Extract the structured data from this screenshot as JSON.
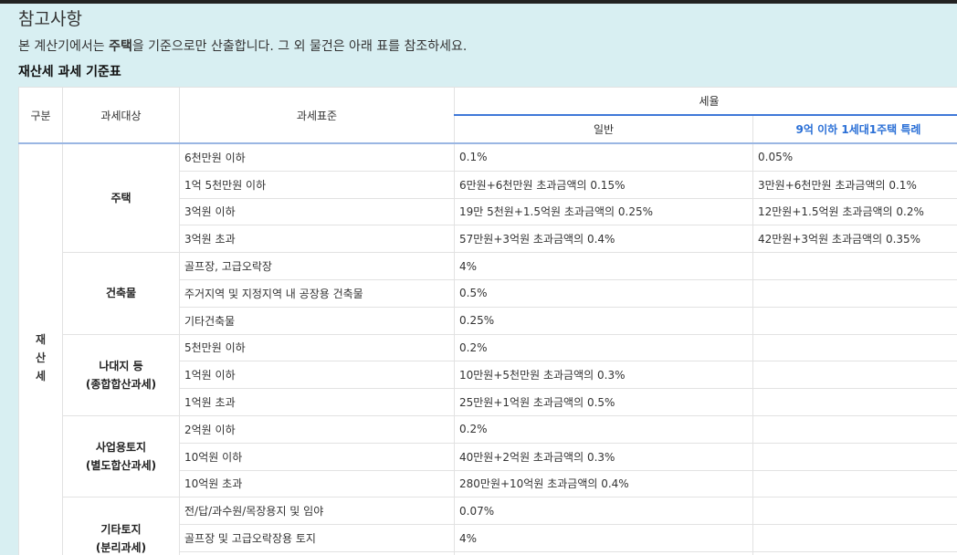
{
  "heading": "참고사항",
  "description": {
    "before": "본 계산기에서는 ",
    "bold": "주택",
    "after": "을 기준으로만 산출합니다. 그 외 물건은 아래 표를 참조하세요."
  },
  "table_title": "재산세 과세 기준표",
  "headers": {
    "gubun": "구분",
    "target": "과세대상",
    "standard": "과세표준",
    "rate": "세율",
    "general": "일반",
    "special": "9억 이하 1세대1주택 특례"
  },
  "tax_name_chars": [
    "재",
    "산",
    "세"
  ],
  "categories": [
    {
      "name": "주택",
      "sub": "",
      "rows": [
        {
          "standard": "6천만원 이하",
          "general": "0.1%",
          "special": "0.05%"
        },
        {
          "standard": "1억 5천만원 이하",
          "general": "6만원+6천만원 초과금액의 0.15%",
          "special": "3만원+6천만원 초과금액의 0.1%"
        },
        {
          "standard": "3억원 이하",
          "general": "19만 5천원+1.5억원 초과금액의 0.25%",
          "special": "12만원+1.5억원 초과금액의 0.2%"
        },
        {
          "standard": "3억원 초과",
          "general": "57만원+3억원 초과금액의 0.4%",
          "special": "42만원+3억원 초과금액의 0.35%"
        }
      ]
    },
    {
      "name": "건축물",
      "sub": "",
      "rows": [
        {
          "standard": "골프장, 고급오락장",
          "general": "4%",
          "special": ""
        },
        {
          "standard": "주거지역 및 지정지역 내 공장용 건축물",
          "general": "0.5%",
          "special": ""
        },
        {
          "standard": "기타건축물",
          "general": "0.25%",
          "special": ""
        }
      ]
    },
    {
      "name": "나대지 등",
      "sub": "(종합합산과세)",
      "rows": [
        {
          "standard": "5천만원 이하",
          "general": "0.2%",
          "special": ""
        },
        {
          "standard": "1억원 이하",
          "general": "10만원+5천만원 초과금액의 0.3%",
          "special": ""
        },
        {
          "standard": "1억원 초과",
          "general": "25만원+1억원 초과금액의 0.5%",
          "special": ""
        }
      ]
    },
    {
      "name": "사업용토지",
      "sub": "(별도합산과세)",
      "rows": [
        {
          "standard": "2억원 이하",
          "general": "0.2%",
          "special": ""
        },
        {
          "standard": "10억원 이하",
          "general": "40만원+2억원 초과금액의 0.3%",
          "special": ""
        },
        {
          "standard": "10억원 초과",
          "general": "280만원+10억원 초과금액의 0.4%",
          "special": ""
        }
      ]
    },
    {
      "name": "기타토지",
      "sub": "(분리과세)",
      "rows": [
        {
          "standard": "전/답/과수원/목장용지 및 임야",
          "general": "0.07%",
          "special": ""
        },
        {
          "standard": "골프장 및 고급오락장용 토지",
          "general": "4%",
          "special": ""
        },
        {
          "standard": "",
          "general": "",
          "special": ""
        }
      ]
    }
  ]
}
